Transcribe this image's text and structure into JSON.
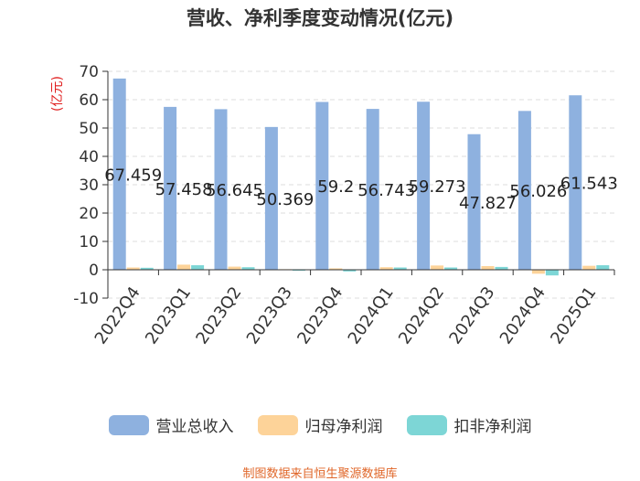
{
  "chart_data": {
    "type": "bar",
    "title": "营收、净利季度变动情况(亿元)",
    "ylabel": "(亿元)",
    "ylim": [
      -10,
      70
    ],
    "yticks": [
      -10,
      0,
      10,
      20,
      30,
      40,
      50,
      60,
      70
    ],
    "grid": true,
    "legend_position": "bottom",
    "categories": [
      "2022Q4",
      "2023Q1",
      "2023Q2",
      "2023Q3",
      "2023Q4",
      "2024Q1",
      "2024Q2",
      "2024Q3",
      "2024Q4",
      "2025Q1"
    ],
    "series": [
      {
        "name": "营业总收入",
        "color": "#8eb1df",
        "values": [
          67.459,
          57.458,
          56.645,
          50.369,
          59.2,
          56.743,
          59.273,
          47.827,
          56.026,
          61.543
        ],
        "labels": [
          "67.459",
          "57.458",
          "56.645",
          "50.369",
          "59.2",
          "56.743",
          "59.273",
          "47.827",
          "56.026",
          "61.543"
        ]
      },
      {
        "name": "归母净利润",
        "color": "#fdd399",
        "values": [
          0.8,
          1.8,
          1.1,
          0.2,
          0.5,
          0.9,
          1.5,
          1.3,
          -1.4,
          1.4
        ]
      },
      {
        "name": "扣非净利润",
        "color": "#7dd6d6",
        "values": [
          0.7,
          1.6,
          0.9,
          -0.3,
          -0.6,
          0.8,
          0.8,
          1.0,
          -2.0,
          1.6
        ]
      }
    ]
  },
  "source": "制图数据来自恒生聚源数据库"
}
